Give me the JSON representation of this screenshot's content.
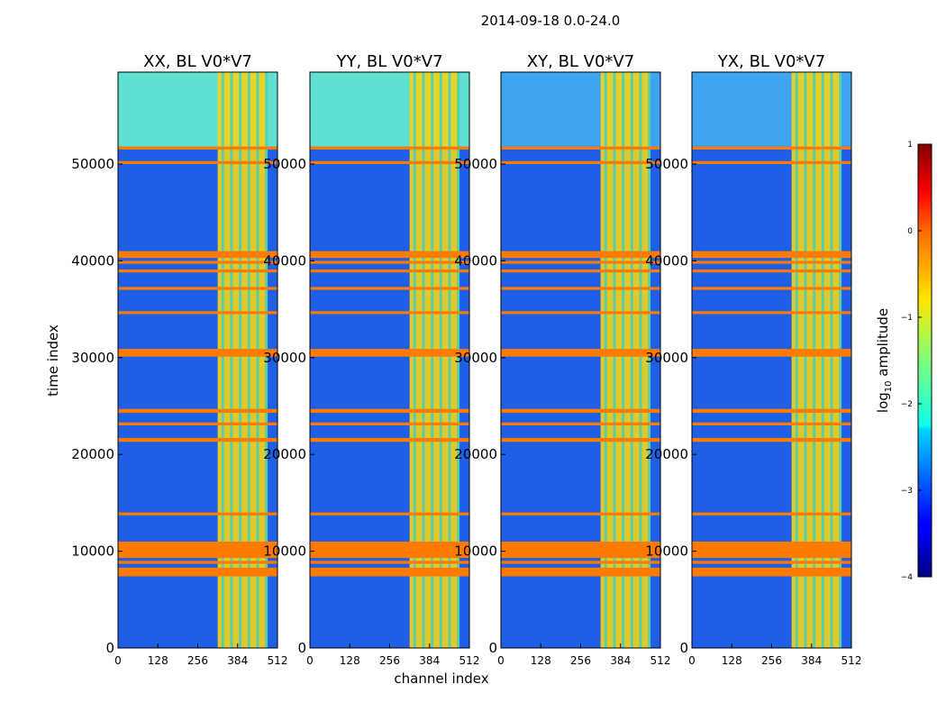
{
  "figure": {
    "title": "2014-09-18 0.0-24.0"
  },
  "chart_data": {
    "type": "heatmap",
    "title": "2014-09-18 0.0-24.0",
    "xlabel": "channel index",
    "ylabel": "time index",
    "xlim": [
      0,
      512
    ],
    "ylim": [
      0,
      59500
    ],
    "x_ticks": [
      0,
      128,
      256,
      384,
      512
    ],
    "y_ticks": [
      0,
      10000,
      20000,
      30000,
      40000,
      50000
    ],
    "panels": [
      {
        "title": "XX, BL V0*V7"
      },
      {
        "title": "YY, BL V0*V7"
      },
      {
        "title": "XY, BL V0*V7"
      },
      {
        "title": "YX, BL V0*V7"
      }
    ],
    "colorbar": {
      "label": "log",
      "label_sub": "10",
      "label_rest": " amplitude",
      "min": -4,
      "max": 1,
      "ticks": [
        1,
        0,
        -1,
        -2,
        -3,
        -4
      ]
    },
    "flagged_time_bands": [
      [
        7400,
        8300
      ],
      [
        8700,
        9000
      ],
      [
        9300,
        11000
      ],
      [
        13700,
        14000
      ],
      [
        21300,
        21700
      ],
      [
        23000,
        23300
      ],
      [
        24300,
        24700
      ],
      [
        30100,
        30900
      ],
      [
        34500,
        34800
      ],
      [
        37000,
        37300
      ],
      [
        38800,
        39100
      ],
      [
        39700,
        40000
      ],
      [
        40300,
        41000
      ],
      [
        50000,
        50300
      ],
      [
        51500,
        51800
      ]
    ],
    "bright_channel_range": [
      320,
      480
    ]
  }
}
